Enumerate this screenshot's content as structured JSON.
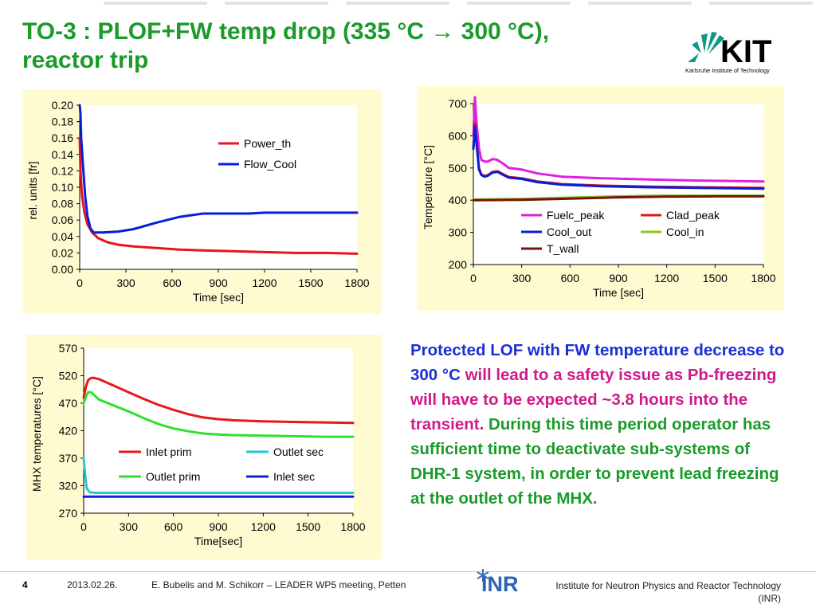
{
  "slide": {
    "title_line1": "TO-3 : PLOF+FW temp drop (335 °C → 300 °C),",
    "title_line2": "reactor trip",
    "logo": {
      "text": "KIT",
      "subtitle": "Karlsruhe Institute of Technology",
      "color_green": "#0e9a85",
      "color_dark": "#000000"
    },
    "body_parts": [
      {
        "text": "Protected LOF with FW temperature decrease to 300 °C",
        "color": "blue"
      },
      {
        "text": " will lead to a safety issue as Pb-freezing will have to be expected ~3.8 hours into the transient.",
        "color": "mag"
      },
      {
        "text": " During this time period operator has sufficient time to deactivate sub-systems of DHR-1 system, in order to prevent lead freezing at the outlet of the MHX.",
        "color": "green"
      }
    ],
    "footer": {
      "page": "4",
      "date": "2013.02.26.",
      "authors": "E. Bubelis and M. Schikorr – LEADER WP5 meeting, Petten",
      "logo_text": "INR",
      "institute_line1": "Institute for Neutron Physics and Reactor Technology",
      "institute_line2": "(INR)"
    }
  },
  "chart_data": [
    {
      "type": "line",
      "xlabel": "Time [sec]",
      "ylabel": "rel. units  [fr]",
      "xlim": [
        0,
        1800
      ],
      "ylim": [
        0,
        0.2
      ],
      "xticks": [
        "0",
        "300",
        "600",
        "900",
        "1200",
        "1500",
        "1800"
      ],
      "yticks": [
        "0.00",
        "0.02",
        "0.04",
        "0.06",
        "0.08",
        "0.10",
        "0.12",
        "0.14",
        "0.16",
        "0.18",
        "0.20"
      ],
      "legend_position": "upper-right",
      "series": [
        {
          "name": "Power_th",
          "color": "#e8141c",
          "x": [
            0,
            5,
            15,
            30,
            50,
            80,
            120,
            180,
            250,
            350,
            500,
            650,
            800,
            1000,
            1200,
            1400,
            1600,
            1800
          ],
          "y": [
            0.16,
            0.12,
            0.09,
            0.07,
            0.055,
            0.045,
            0.038,
            0.033,
            0.03,
            0.028,
            0.026,
            0.024,
            0.023,
            0.022,
            0.021,
            0.02,
            0.02,
            0.019
          ]
        },
        {
          "name": "Flow_Cool",
          "color": "#0a1ed8",
          "x": [
            0,
            5,
            10,
            20,
            35,
            50,
            70,
            90,
            150,
            250,
            350,
            500,
            650,
            800,
            900,
            1000,
            1100,
            1200,
            1300,
            1500,
            1800
          ],
          "y": [
            0.2,
            0.19,
            0.16,
            0.13,
            0.09,
            0.065,
            0.05,
            0.045,
            0.045,
            0.046,
            0.049,
            0.057,
            0.064,
            0.068,
            0.068,
            0.068,
            0.068,
            0.069,
            0.069,
            0.069,
            0.069
          ]
        }
      ]
    },
    {
      "type": "line",
      "xlabel": "Time [sec]",
      "ylabel": "Temperature  [°C]",
      "xlim": [
        0,
        1800
      ],
      "ylim": [
        200,
        700
      ],
      "xticks": [
        "0",
        "300",
        "600",
        "900",
        "1200",
        "1500",
        "1800"
      ],
      "yticks": [
        "200",
        "300",
        "400",
        "500",
        "600",
        "700"
      ],
      "legend_position": "center-right",
      "series": [
        {
          "name": "Fuelc_peak",
          "color": "#e020e0",
          "x": [
            0,
            10,
            20,
            35,
            50,
            70,
            90,
            120,
            150,
            180,
            220,
            300,
            400,
            550,
            800,
            1100,
            1400,
            1800
          ],
          "y": [
            600,
            720,
            640,
            560,
            525,
            520,
            520,
            528,
            525,
            515,
            500,
            495,
            483,
            473,
            468,
            464,
            461,
            458
          ]
        },
        {
          "name": "Clad_peak",
          "color": "#e01818",
          "x": [
            0,
            10,
            20,
            35,
            50,
            70,
            90,
            120,
            150,
            180,
            220,
            300,
            400,
            550,
            800,
            1100,
            1400,
            1800
          ],
          "y": [
            560,
            640,
            580,
            500,
            480,
            475,
            478,
            488,
            490,
            482,
            472,
            468,
            458,
            450,
            445,
            442,
            440,
            438
          ]
        },
        {
          "name": "Cool_out",
          "color": "#0a1ed8",
          "x": [
            0,
            10,
            20,
            35,
            50,
            70,
            90,
            120,
            150,
            180,
            220,
            300,
            400,
            550,
            800,
            1100,
            1400,
            1800
          ],
          "y": [
            560,
            630,
            575,
            495,
            478,
            473,
            476,
            486,
            488,
            480,
            470,
            466,
            456,
            448,
            443,
            440,
            438,
            436
          ]
        },
        {
          "name": "Cool_in",
          "color": "#8ec820",
          "x": [
            0,
            300,
            600,
            900,
            1200,
            1500,
            1800
          ],
          "y": [
            402,
            404,
            408,
            412,
            414,
            414,
            414
          ]
        },
        {
          "name": "T_wall",
          "color": "#7a1010",
          "x": [
            0,
            300,
            600,
            900,
            1200,
            1500,
            1800
          ],
          "y": [
            400,
            401,
            405,
            409,
            411,
            412,
            412
          ]
        }
      ]
    },
    {
      "type": "line",
      "xlabel": "Time[sec]",
      "ylabel": "MHX temperatures [°C]",
      "xlim": [
        0,
        1800
      ],
      "ylim": [
        270,
        570
      ],
      "xticks": [
        "0",
        "300",
        "600",
        "900",
        "1200",
        "1500",
        "1800"
      ],
      "yticks": [
        "270",
        "320",
        "370",
        "420",
        "470",
        "520",
        "570"
      ],
      "legend_position": "center",
      "series": [
        {
          "name": "Inlet prim",
          "color": "#e81818",
          "x": [
            0,
            15,
            30,
            50,
            70,
            100,
            200,
            300,
            400,
            500,
            600,
            700,
            800,
            900,
            1000,
            1200,
            1400,
            1600,
            1800
          ],
          "y": [
            480,
            500,
            512,
            516,
            516,
            514,
            502,
            490,
            478,
            467,
            458,
            450,
            444,
            441,
            439,
            437,
            436,
            435,
            434
          ]
        },
        {
          "name": "Outlet sec",
          "color": "#20c8d8",
          "x": [
            0,
            10,
            20,
            40,
            80,
            200,
            600,
            1000,
            1400,
            1800
          ],
          "y": [
            370,
            340,
            315,
            308,
            307,
            307,
            307,
            307,
            307,
            307
          ]
        },
        {
          "name": "Outlet prim",
          "color": "#30e030",
          "x": [
            0,
            15,
            30,
            50,
            70,
            100,
            200,
            300,
            400,
            500,
            600,
            700,
            800,
            900,
            1000,
            1200,
            1400,
            1600,
            1800
          ],
          "y": [
            470,
            482,
            490,
            490,
            485,
            477,
            466,
            455,
            443,
            432,
            424,
            419,
            415,
            413,
            412,
            411,
            410,
            409,
            409
          ]
        },
        {
          "name": "Inlet sec",
          "color": "#1020d8",
          "x": [
            0,
            1800
          ],
          "y": [
            300,
            300
          ]
        }
      ]
    }
  ]
}
